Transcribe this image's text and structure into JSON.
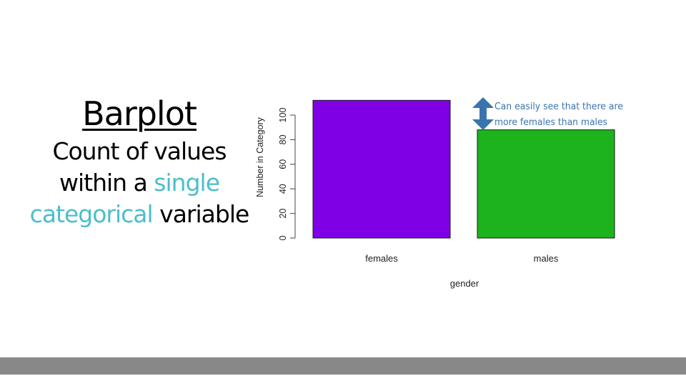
{
  "slide": {
    "title": "Barplot",
    "subtitle_line1": "Count of values",
    "subtitle_line2_a": "within a ",
    "subtitle_line2_b": "single",
    "subtitle_line3_a": "categorical",
    "subtitle_line3_b": " variable",
    "highlight_color": "#4bbfca"
  },
  "annotation": {
    "line1": "Can easily see that there are",
    "line2": "more females than males",
    "color": "#3a74ae",
    "icon": "double-arrow-vertical-icon"
  },
  "chart_data": {
    "type": "bar",
    "categories": [
      "females",
      "males"
    ],
    "values": [
      112,
      88
    ],
    "colors": [
      "#8000e6",
      "#1cb31c"
    ],
    "xlabel": "gender",
    "ylabel": "Number in Category",
    "ylim": [
      0,
      112
    ],
    "yticks": [
      0,
      20,
      40,
      60,
      80,
      100
    ],
    "grid": false
  },
  "footer": {
    "color": "#888888"
  }
}
